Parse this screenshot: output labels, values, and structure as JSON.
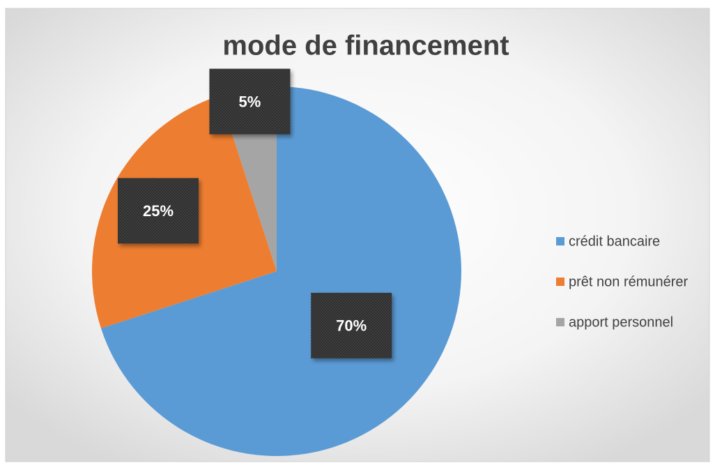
{
  "chart_data": {
    "type": "pie",
    "title": "mode de financement",
    "categories": [
      "crédit bancaire",
      "prêt non rémunérer",
      "apport personnel"
    ],
    "values": [
      70,
      25,
      5
    ],
    "value_labels": [
      "70%",
      "25%",
      "5%"
    ],
    "colors": [
      "#5b9bd5",
      "#ed7d31",
      "#a5a5a5"
    ],
    "legend": "right"
  }
}
